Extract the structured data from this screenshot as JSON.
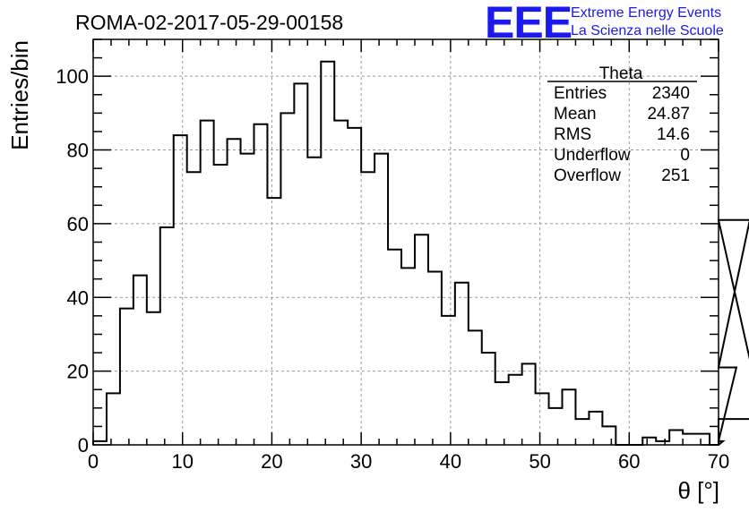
{
  "chart_data": {
    "type": "histogram",
    "title": "ROMA-02-2017-05-29-00158",
    "xlabel": "θ [°]",
    "ylabel": "Entries/bin",
    "xlim": [
      0,
      70
    ],
    "ylim": [
      0,
      110
    ],
    "xticks": [
      0,
      10,
      20,
      30,
      40,
      50,
      60,
      70
    ],
    "yticks": [
      0,
      20,
      40,
      60,
      80,
      100
    ],
    "grid": true,
    "bin_width": 1.5,
    "bin_start": 0,
    "values": [
      1,
      14,
      37,
      46,
      36,
      59,
      84,
      74,
      88,
      76,
      83,
      79,
      87,
      67,
      90,
      98,
      78,
      104,
      88,
      86,
      74,
      79,
      53,
      48,
      57,
      47,
      35,
      44,
      31,
      25,
      17,
      19,
      22,
      14,
      10,
      15,
      7,
      9,
      5,
      0,
      0,
      2,
      1,
      4,
      3,
      3,
      0,
      1,
      21,
      61,
      7
    ],
    "stats_box": {
      "header": "Theta",
      "rows": [
        {
          "label": "Entries",
          "value": "2340"
        },
        {
          "label": "Mean",
          "value": "24.87"
        },
        {
          "label": "RMS",
          "value": "14.6"
        },
        {
          "label": "Underflow",
          "value": "0"
        },
        {
          "label": "Overflow",
          "value": "251"
        }
      ]
    },
    "logo": {
      "text": "EEE",
      "line1": "Extreme Energy Events",
      "line2": "La Scienza nelle Scuole",
      "color": "#1a1aee"
    }
  }
}
